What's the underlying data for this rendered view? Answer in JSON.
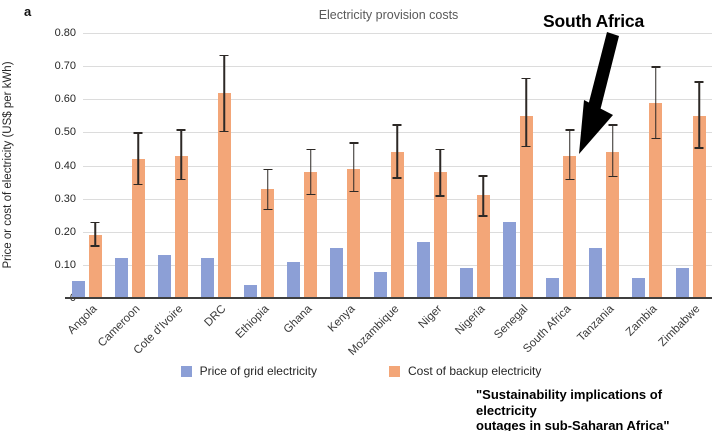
{
  "panel_label": "a",
  "title": "Electricity provision costs",
  "annotation": {
    "label": "South Africa"
  },
  "citation": {
    "line1": "\"Sustainability implications of electricity",
    "line2": "outages in sub-Saharan Africa\""
  },
  "y_axis": {
    "label": "Price or cost of electricity (US$ per kWh)"
  },
  "legend": [
    {
      "label": "Price of grid electricity",
      "color": "#8c9fd6"
    },
    {
      "label": "Cost of backup electricity",
      "color": "#f3a678"
    }
  ],
  "colors": {
    "grid_price_bar": "#8c9fd6",
    "backup_cost_bar": "#f3a678",
    "error_bar": "#2d2926",
    "gridline": "#dcdcdc",
    "axis_line": "#3f3f3f"
  },
  "chart_data": {
    "type": "bar",
    "title": "Electricity provision costs",
    "xlabel": "",
    "ylabel": "Price or cost of electricity (US$ per kWh)",
    "ylim": [
      0,
      0.8
    ],
    "grid": true,
    "legend_position": "bottom",
    "categories": [
      "Angola",
      "Cameroon",
      "Cote d'Ivoire",
      "DRC",
      "Ethiopia",
      "Ghana",
      "Kenya",
      "Mozambique",
      "Niger",
      "Nigeria",
      "Senegal",
      "South Africa",
      "Tanzania",
      "Zambia",
      "Zimbabwe"
    ],
    "y_ticks": [
      {
        "label": "0.80",
        "value": 0.8
      },
      {
        "label": "0.70",
        "value": 0.7
      },
      {
        "label": "0.60",
        "value": 0.6
      },
      {
        "label": "0.50",
        "value": 0.5
      },
      {
        "label": "0.40",
        "value": 0.4
      },
      {
        "label": "0.30",
        "value": 0.3
      },
      {
        "label": "0.20",
        "value": 0.2
      },
      {
        "label": "0.10",
        "value": 0.1
      },
      {
        "label": "0",
        "value": 0
      }
    ],
    "series": [
      {
        "name": "Price of grid electricity",
        "color": "#8c9fd6",
        "values": [
          0.05,
          0.12,
          0.13,
          0.12,
          0.04,
          0.11,
          0.15,
          0.08,
          0.17,
          0.09,
          0.23,
          0.06,
          0.15,
          0.06,
          0.09
        ]
      },
      {
        "name": "Cost of backup electricity",
        "color": "#f3a678",
        "values": [
          0.19,
          0.42,
          0.43,
          0.62,
          0.33,
          0.38,
          0.39,
          0.44,
          0.38,
          0.31,
          0.55,
          0.43,
          0.44,
          0.59,
          0.55
        ],
        "error_low": [
          0.155,
          0.34,
          0.355,
          0.5,
          0.265,
          0.31,
          0.32,
          0.36,
          0.305,
          0.245,
          0.455,
          0.355,
          0.365,
          0.48,
          0.45
        ],
        "error_high": [
          0.23,
          0.5,
          0.51,
          0.735,
          0.39,
          0.45,
          0.47,
          0.525,
          0.45,
          0.37,
          0.665,
          0.51,
          0.525,
          0.7,
          0.655
        ]
      }
    ]
  }
}
